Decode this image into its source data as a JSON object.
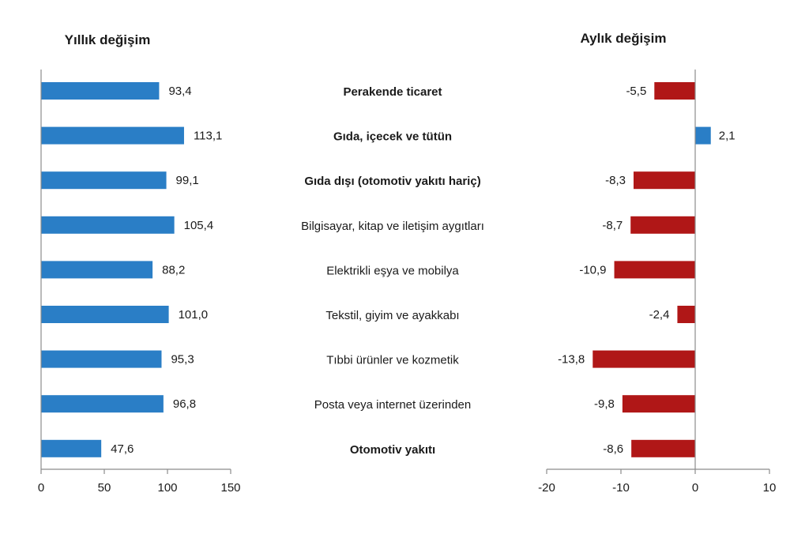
{
  "chart_data": [
    {
      "type": "bar",
      "orientation": "horizontal",
      "title": "Yıllık değişim",
      "categories": [
        "Perakende ticaret",
        "Gıda, içecek ve tütün",
        "Gıda dışı (otomotiv yakıtı hariç)",
        "Bilgisayar, kitap ve iletişim aygıtları",
        "Elektrikli eşya ve mobilya",
        "Tekstil, giyim ve ayakkabı",
        "Tıbbi ürünler ve kozmetik",
        "Posta veya internet üzerinden",
        "Otomotiv yakıtı"
      ],
      "values": [
        93.4,
        113.1,
        99.1,
        105.4,
        88.2,
        101.0,
        95.3,
        96.8,
        47.6
      ],
      "value_labels": [
        "93,4",
        "113,1",
        "99,1",
        "105,4",
        "88,2",
        "101,0",
        "95,3",
        "96,8",
        "47,6"
      ],
      "xlim": [
        0,
        150
      ],
      "xticks": [
        0,
        50,
        100,
        150
      ],
      "xtick_labels": [
        "0",
        "50",
        "100",
        "150"
      ],
      "color": "#2a7ec6",
      "grid": false
    },
    {
      "type": "bar",
      "orientation": "horizontal",
      "title": "Aylık değişim",
      "categories": [
        "Perakende ticaret",
        "Gıda, içecek ve tütün",
        "Gıda dışı (otomotiv yakıtı hariç)",
        "Bilgisayar, kitap ve iletişim aygıtları",
        "Elektrikli eşya ve mobilya",
        "Tekstil, giyim ve ayakkabı",
        "Tıbbi ürünler ve kozmetik",
        "Posta veya internet üzerinden",
        "Otomotiv yakıtı"
      ],
      "values": [
        -5.5,
        2.1,
        -8.3,
        -8.7,
        -10.9,
        -2.4,
        -13.8,
        -9.8,
        -8.6
      ],
      "value_labels": [
        "-5,5",
        "2,1",
        "-8,3",
        "-8,7",
        "-10,9",
        "-2,4",
        "-13,8",
        "-9,8",
        "-8,6"
      ],
      "xlim": [
        -20,
        10
      ],
      "xticks": [
        -20,
        -10,
        0,
        10
      ],
      "xtick_labels": [
        "-20",
        "-10",
        "0",
        "10"
      ],
      "positive_color": "#2a7ec6",
      "negative_color": "#b01717",
      "grid": false
    }
  ],
  "category_labels": {
    "items": [
      "Perakende ticaret",
      "Gıda, içecek ve tütün",
      "Gıda dışı (otomotiv yakıtı hariç)",
      "Bilgisayar, kitap ve iletişim aygıtları",
      "Elektrikli eşya ve mobilya",
      "Tekstil, giyim ve ayakkabı",
      "Tıbbi ürünler ve kozmetik",
      "Posta veya internet üzerinden",
      "Otomotiv yakıtı"
    ],
    "bold": [
      true,
      true,
      true,
      false,
      false,
      false,
      false,
      false,
      true
    ]
  }
}
